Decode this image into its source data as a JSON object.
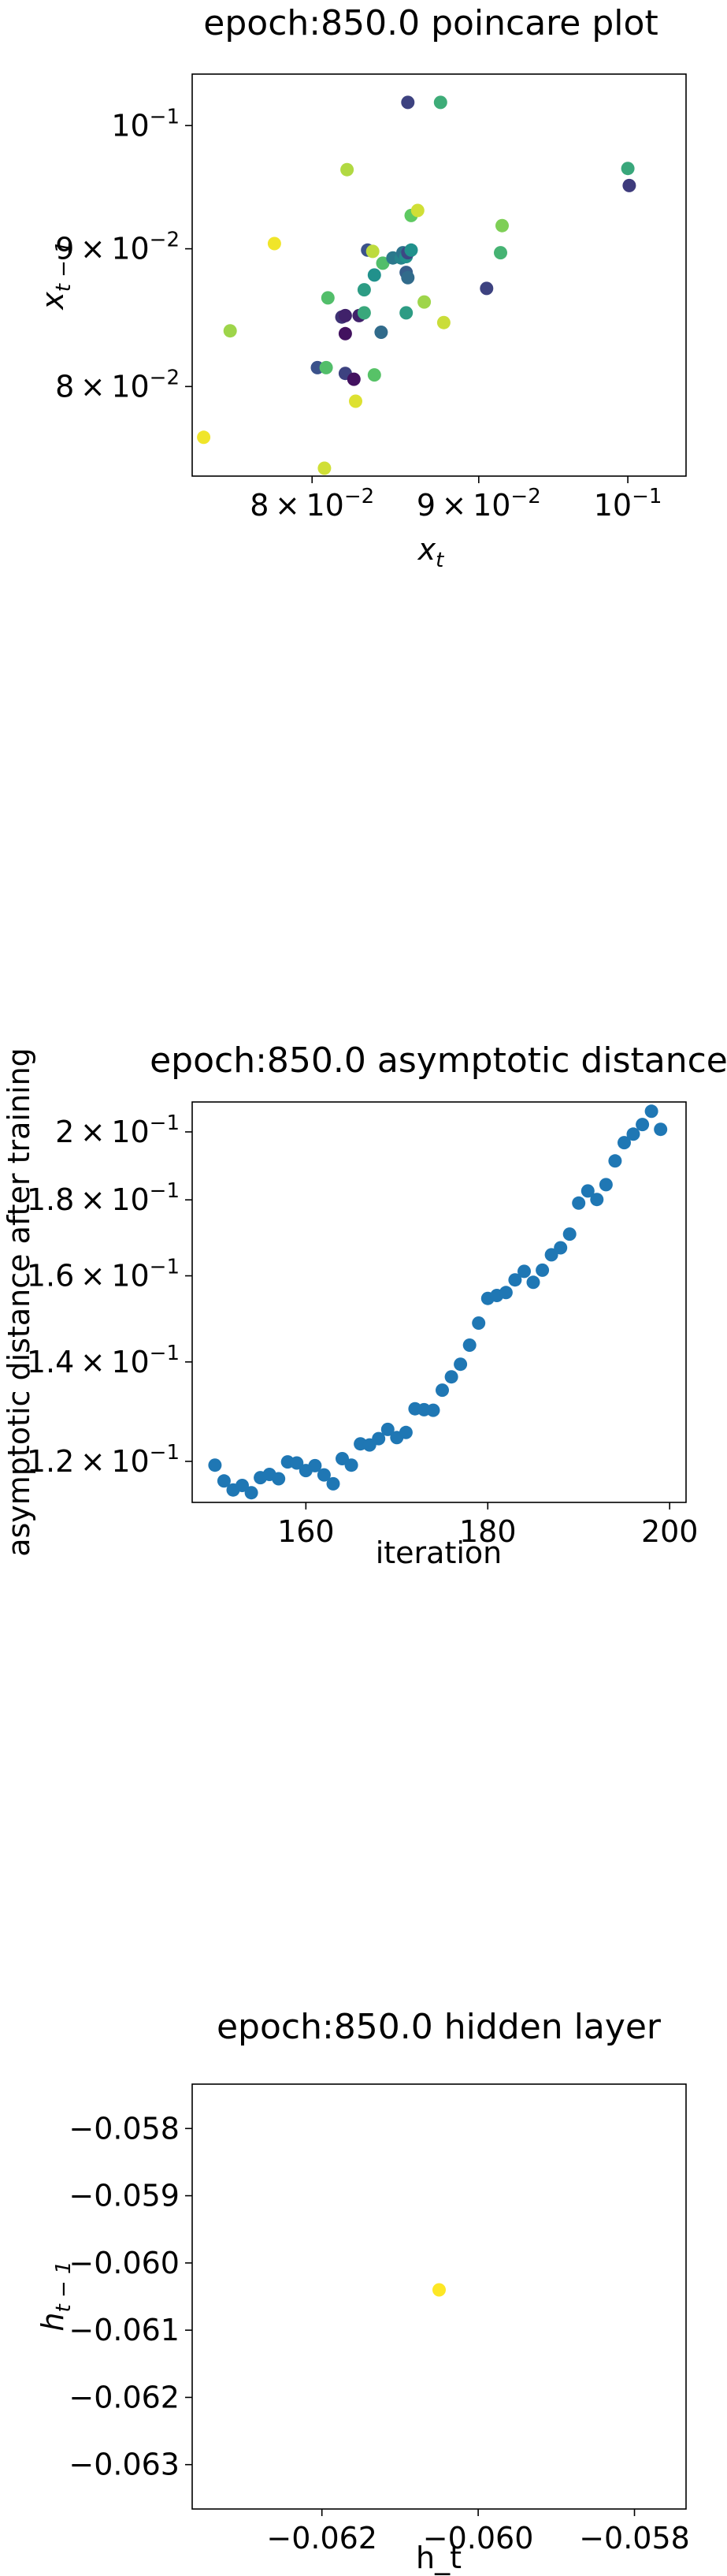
{
  "chart_data": [
    {
      "type": "scatter",
      "title": "epoch:850.0 poincare plot",
      "xlabel": "x_t",
      "ylabel": "x_{t-1}",
      "xscale": "log",
      "yscale": "log",
      "xlim": [
        0.0735,
        0.1042
      ],
      "ylim": [
        0.0741,
        0.1045
      ],
      "xticks": [
        {
          "value": 0.08,
          "mant": "8",
          "exp": "−2"
        },
        {
          "value": 0.09,
          "mant": "9",
          "exp": "−2"
        },
        {
          "value": 0.1,
          "mant": "",
          "exp": "−1"
        }
      ],
      "yticks": [
        {
          "value": 0.08,
          "mant": "8",
          "exp": "−2"
        },
        {
          "value": 0.09,
          "mant": "9",
          "exp": "−2"
        },
        {
          "value": 0.1,
          "mant": "",
          "exp": "−1"
        }
      ],
      "grid": false,
      "colormap": "viridis",
      "points": [
        {
          "x": 0.0741,
          "y": 0.0766,
          "c": 0.98
        },
        {
          "x": 0.0755,
          "y": 0.0839,
          "c": 0.85
        },
        {
          "x": 0.0779,
          "y": 0.0904,
          "c": 0.98
        },
        {
          "x": 0.0807,
          "y": 0.0746,
          "c": 0.93
        },
        {
          "x": 0.0803,
          "y": 0.0813,
          "c": 0.25
        },
        {
          "x": 0.0808,
          "y": 0.0813,
          "c": 0.7
        },
        {
          "x": 0.0809,
          "y": 0.0863,
          "c": 0.7
        },
        {
          "x": 0.0817,
          "y": 0.0849,
          "c": 0.15
        },
        {
          "x": 0.0819,
          "y": 0.0809,
          "c": 0.2
        },
        {
          "x": 0.0819,
          "y": 0.0837,
          "c": 0.05
        },
        {
          "x": 0.0819,
          "y": 0.085,
          "c": 0.1
        },
        {
          "x": 0.082,
          "y": 0.0963,
          "c": 0.88
        },
        {
          "x": 0.0824,
          "y": 0.0805,
          "c": 0.05
        },
        {
          "x": 0.0825,
          "y": 0.079,
          "c": 0.95
        },
        {
          "x": 0.0827,
          "y": 0.085,
          "c": 0.1
        },
        {
          "x": 0.083,
          "y": 0.0852,
          "c": 0.6
        },
        {
          "x": 0.083,
          "y": 0.0869,
          "c": 0.55
        },
        {
          "x": 0.0832,
          "y": 0.0899,
          "c": 0.25
        },
        {
          "x": 0.0835,
          "y": 0.0898,
          "c": 0.9
        },
        {
          "x": 0.0836,
          "y": 0.0808,
          "c": 0.72
        },
        {
          "x": 0.0836,
          "y": 0.088,
          "c": 0.5
        },
        {
          "x": 0.084,
          "y": 0.0838,
          "c": 0.35
        },
        {
          "x": 0.0841,
          "y": 0.0889,
          "c": 0.7
        },
        {
          "x": 0.0847,
          "y": 0.0893,
          "c": 0.4
        },
        {
          "x": 0.0852,
          "y": 0.0893,
          "c": 0.45
        },
        {
          "x": 0.0853,
          "y": 0.0897,
          "c": 0.38
        },
        {
          "x": 0.0855,
          "y": 0.0882,
          "c": 0.3
        },
        {
          "x": 0.0855,
          "y": 0.0894,
          "c": 0.5
        },
        {
          "x": 0.0855,
          "y": 0.0852,
          "c": 0.55
        },
        {
          "x": 0.0856,
          "y": 0.0897,
          "c": 0.22
        },
        {
          "x": 0.0856,
          "y": 0.0878,
          "c": 0.35
        },
        {
          "x": 0.0858,
          "y": 0.0899,
          "c": 0.5
        },
        {
          "x": 0.0858,
          "y": 0.0926,
          "c": 0.75
        },
        {
          "x": 0.0856,
          "y": 0.102,
          "c": 0.2
        },
        {
          "x": 0.0862,
          "y": 0.093,
          "c": 0.93
        },
        {
          "x": 0.0866,
          "y": 0.086,
          "c": 0.85
        },
        {
          "x": 0.0876,
          "y": 0.102,
          "c": 0.62
        },
        {
          "x": 0.0878,
          "y": 0.0845,
          "c": 0.92
        },
        {
          "x": 0.0905,
          "y": 0.087,
          "c": 0.2
        },
        {
          "x": 0.0914,
          "y": 0.0897,
          "c": 0.65
        },
        {
          "x": 0.0915,
          "y": 0.0918,
          "c": 0.8
        },
        {
          "x": 0.1,
          "y": 0.0964,
          "c": 0.6
        },
        {
          "x": 0.1001,
          "y": 0.095,
          "c": 0.18
        }
      ]
    },
    {
      "type": "scatter",
      "title": "epoch:850.0 asymptotic distance",
      "xlabel": "iteration",
      "ylabel": "asymptotic distance after training",
      "xscale": "linear",
      "yscale": "log",
      "xlim": [
        147.5,
        201.8
      ],
      "ylim": [
        0.1126,
        0.2095
      ],
      "xticks": [
        {
          "value": 160,
          "label": "160"
        },
        {
          "value": 180,
          "label": "180"
        },
        {
          "value": 200,
          "label": "200"
        }
      ],
      "yticks": [
        {
          "value": 0.12,
          "mant": "1.2",
          "exp": "−1"
        },
        {
          "value": 0.14,
          "mant": "1.4",
          "exp": "−1"
        },
        {
          "value": 0.16,
          "mant": "1.6",
          "exp": "−1"
        },
        {
          "value": 0.18,
          "mant": "1.8",
          "exp": "−1"
        },
        {
          "value": 0.2,
          "mant": "2",
          "exp": "−1"
        }
      ],
      "grid": false,
      "color": "#1f77b4",
      "x": [
        150,
        151,
        152,
        153,
        154,
        155,
        156,
        157,
        158,
        159,
        160,
        161,
        162,
        163,
        164,
        165,
        166,
        167,
        168,
        169,
        170,
        171,
        172,
        173,
        174,
        175,
        176,
        177,
        178,
        179,
        180,
        181,
        182,
        183,
        184,
        185,
        186,
        187,
        188,
        189,
        190,
        191,
        192,
        193,
        194,
        195,
        196,
        197,
        198,
        199
      ],
      "y": [
        0.1193,
        0.1164,
        0.1148,
        0.1156,
        0.1143,
        0.117,
        0.1176,
        0.1168,
        0.1199,
        0.1197,
        0.1183,
        0.1192,
        0.1175,
        0.1159,
        0.1205,
        0.1193,
        0.1233,
        0.1231,
        0.1243,
        0.1261,
        0.1245,
        0.1255,
        0.1302,
        0.13,
        0.1299,
        0.134,
        0.1368,
        0.1395,
        0.1437,
        0.1487,
        0.1545,
        0.1552,
        0.1559,
        0.159,
        0.1611,
        0.1584,
        0.1614,
        0.1653,
        0.1671,
        0.1707,
        0.1791,
        0.1825,
        0.1801,
        0.1843,
        0.1912,
        0.1967,
        0.1993,
        0.2023,
        0.2065,
        0.2008
      ]
    },
    {
      "type": "scatter",
      "title": "epoch:850.0 hidden layer",
      "xlabel": "h_t",
      "ylabel": "h_{t-1}",
      "xscale": "linear",
      "yscale": "linear",
      "xlim": [
        -0.06366,
        -0.05734
      ],
      "ylim": [
        -0.06366,
        -0.05734
      ],
      "xticks": [
        {
          "value": -0.062,
          "label": "−0.062"
        },
        {
          "value": -0.06,
          "label": "−0.060"
        },
        {
          "value": -0.058,
          "label": "−0.058"
        }
      ],
      "yticks": [
        {
          "value": -0.058,
          "label": "−0.058"
        },
        {
          "value": -0.059,
          "label": "−0.059"
        },
        {
          "value": -0.06,
          "label": "−0.060"
        },
        {
          "value": -0.061,
          "label": "−0.061"
        },
        {
          "value": -0.062,
          "label": "−0.062"
        },
        {
          "value": -0.063,
          "label": "−0.063"
        }
      ],
      "grid": false,
      "color": "#fde725",
      "points": [
        {
          "x": -0.0605,
          "y": -0.0604
        }
      ]
    }
  ]
}
